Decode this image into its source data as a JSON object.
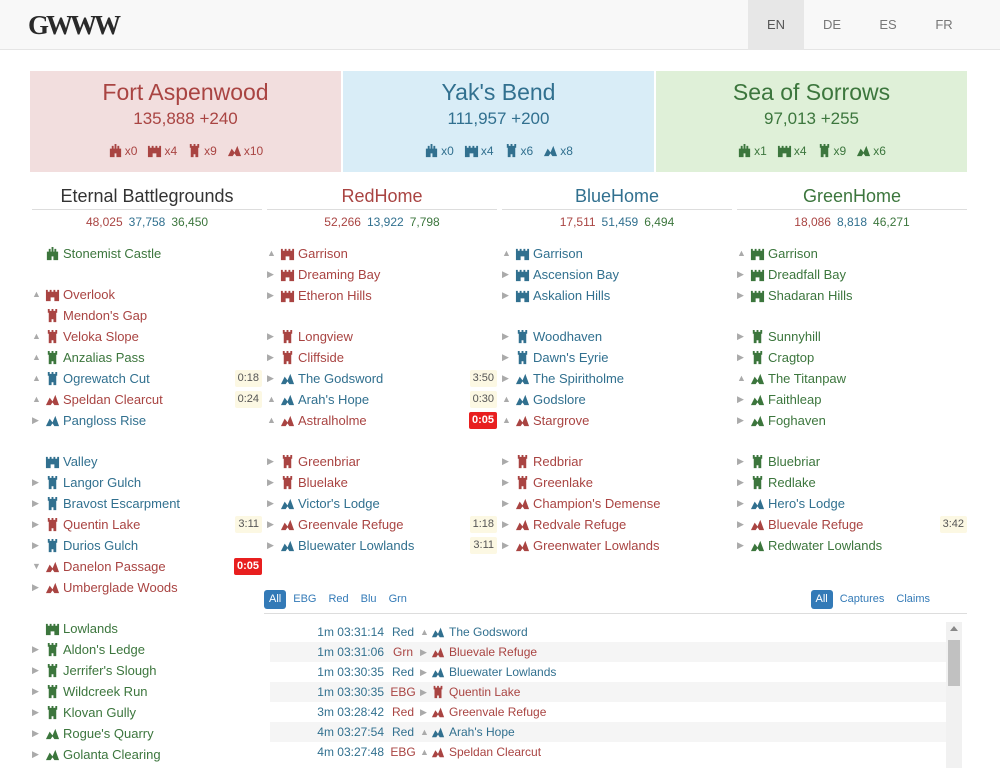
{
  "logo": {
    "text": "GWWW"
  },
  "languages": [
    {
      "code": "EN",
      "active": true
    },
    {
      "code": "DE",
      "active": false
    },
    {
      "code": "ES",
      "active": false
    },
    {
      "code": "FR",
      "active": false
    }
  ],
  "scores": [
    {
      "team": "red",
      "name": "Fort Aspenwood",
      "points": "135,888 +240",
      "holdings": [
        "x0",
        "x4",
        "x9",
        "x10"
      ]
    },
    {
      "team": "blue",
      "name": "Yak's Bend",
      "points": "111,957 +200",
      "holdings": [
        "x0",
        "x4",
        "x6",
        "x8"
      ]
    },
    {
      "team": "green",
      "name": "Sea of Sorrows",
      "points": "97,013 +255",
      "holdings": [
        "x1",
        "x4",
        "x9",
        "x6"
      ]
    }
  ],
  "colors": {
    "red": "#a94442",
    "blue": "#31708f",
    "green": "#3c763d",
    "timer_hot": "#e81f1f",
    "timer_bg": "#fcf8e3"
  },
  "maps": [
    {
      "name": "Eternal Battlegrounds",
      "head": "neu",
      "scores": [
        "48,025",
        "37,758",
        "36,450"
      ],
      "objectives": [
        {
          "name": "Stonemist Castle",
          "team": "green",
          "type": "castle",
          "arrow": "",
          "timer": ""
        },
        {
          "name": "Overlook",
          "team": "red",
          "type": "keep",
          "arrow": "up",
          "timer": ""
        },
        {
          "name": "Mendon's Gap",
          "team": "red",
          "type": "tower",
          "arrow": "",
          "timer": ""
        },
        {
          "name": "Veloka Slope",
          "team": "red",
          "type": "tower",
          "arrow": "up",
          "timer": ""
        },
        {
          "name": "Anzalias Pass",
          "team": "green",
          "type": "tower",
          "arrow": "up",
          "timer": ""
        },
        {
          "name": "Ogrewatch Cut",
          "team": "blue",
          "type": "tower",
          "arrow": "up",
          "timer": "0:18"
        },
        {
          "name": "Speldan Clearcut",
          "team": "red",
          "type": "camp",
          "arrow": "up",
          "timer": "0:24"
        },
        {
          "name": "Pangloss Rise",
          "team": "blue",
          "type": "camp",
          "arrow": "right",
          "timer": ""
        },
        {
          "name": "Valley",
          "team": "blue",
          "type": "keep",
          "arrow": "",
          "timer": ""
        },
        {
          "name": "Langor Gulch",
          "team": "blue",
          "type": "tower",
          "arrow": "right",
          "timer": ""
        },
        {
          "name": "Bravost Escarpment",
          "team": "blue",
          "type": "tower",
          "arrow": "right",
          "timer": ""
        },
        {
          "name": "Quentin Lake",
          "team": "red",
          "type": "tower",
          "arrow": "right",
          "timer": "3:11"
        },
        {
          "name": "Durios Gulch",
          "team": "blue",
          "type": "tower",
          "arrow": "right",
          "timer": ""
        },
        {
          "name": "Danelon Passage",
          "team": "red",
          "type": "camp",
          "arrow": "down",
          "timer": "0:05",
          "hot": true
        },
        {
          "name": "Umberglade Woods",
          "team": "red",
          "type": "camp",
          "arrow": "right",
          "timer": ""
        },
        {
          "name": "Lowlands",
          "team": "green",
          "type": "keep",
          "arrow": "",
          "timer": ""
        },
        {
          "name": "Aldon's Ledge",
          "team": "green",
          "type": "tower",
          "arrow": "right",
          "timer": ""
        },
        {
          "name": "Jerrifer's Slough",
          "team": "green",
          "type": "tower",
          "arrow": "right",
          "timer": ""
        },
        {
          "name": "Wildcreek Run",
          "team": "green",
          "type": "tower",
          "arrow": "right",
          "timer": ""
        },
        {
          "name": "Klovan Gully",
          "team": "green",
          "type": "tower",
          "arrow": "right",
          "timer": ""
        },
        {
          "name": "Rogue's Quarry",
          "team": "green",
          "type": "camp",
          "arrow": "right",
          "timer": ""
        },
        {
          "name": "Golanta Clearing",
          "team": "green",
          "type": "camp",
          "arrow": "right",
          "timer": ""
        }
      ]
    },
    {
      "name": "RedHome",
      "head": "red",
      "scores": [
        "52,266",
        "13,922",
        "7,798"
      ],
      "objectives": [
        {
          "name": "Garrison",
          "team": "red",
          "type": "keep",
          "arrow": "up",
          "timer": ""
        },
        {
          "name": "Dreaming Bay",
          "team": "red",
          "type": "keep",
          "arrow": "right",
          "timer": ""
        },
        {
          "name": "Etheron Hills",
          "team": "red",
          "type": "keep",
          "arrow": "right",
          "timer": ""
        },
        {
          "name": "Longview",
          "team": "red",
          "type": "tower",
          "arrow": "right",
          "timer": ""
        },
        {
          "name": "Cliffside",
          "team": "red",
          "type": "tower",
          "arrow": "right",
          "timer": ""
        },
        {
          "name": "The Godsword",
          "team": "blue",
          "type": "camp",
          "arrow": "right",
          "timer": "3:50"
        },
        {
          "name": "Arah's Hope",
          "team": "blue",
          "type": "camp",
          "arrow": "up",
          "timer": "0:30"
        },
        {
          "name": "Astralholme",
          "team": "red",
          "type": "camp",
          "arrow": "up",
          "timer": "0:05",
          "hot": true
        },
        {
          "name": "Greenbriar",
          "team": "red",
          "type": "tower",
          "arrow": "right",
          "timer": ""
        },
        {
          "name": "Bluelake",
          "team": "red",
          "type": "tower",
          "arrow": "right",
          "timer": ""
        },
        {
          "name": "Victor's Lodge",
          "team": "blue",
          "type": "camp",
          "arrow": "right",
          "timer": ""
        },
        {
          "name": "Greenvale Refuge",
          "team": "red",
          "type": "camp",
          "arrow": "right",
          "timer": "1:18"
        },
        {
          "name": "Bluewater Lowlands",
          "team": "blue",
          "type": "camp",
          "arrow": "right",
          "timer": "3:11"
        }
      ]
    },
    {
      "name": "BlueHome",
      "head": "blue",
      "scores": [
        "17,511",
        "51,459",
        "6,494"
      ],
      "objectives": [
        {
          "name": "Garrison",
          "team": "blue",
          "type": "keep",
          "arrow": "up",
          "timer": ""
        },
        {
          "name": "Ascension Bay",
          "team": "blue",
          "type": "keep",
          "arrow": "right",
          "timer": ""
        },
        {
          "name": "Askalion Hills",
          "team": "blue",
          "type": "keep",
          "arrow": "right",
          "timer": ""
        },
        {
          "name": "Woodhaven",
          "team": "blue",
          "type": "tower",
          "arrow": "right",
          "timer": ""
        },
        {
          "name": "Dawn's Eyrie",
          "team": "blue",
          "type": "tower",
          "arrow": "right",
          "timer": ""
        },
        {
          "name": "The Spiritholme",
          "team": "blue",
          "type": "camp",
          "arrow": "right",
          "timer": ""
        },
        {
          "name": "Godslore",
          "team": "blue",
          "type": "camp",
          "arrow": "up",
          "timer": ""
        },
        {
          "name": "Stargrove",
          "team": "red",
          "type": "camp",
          "arrow": "up",
          "timer": ""
        },
        {
          "name": "Redbriar",
          "team": "red",
          "type": "tower",
          "arrow": "right",
          "timer": ""
        },
        {
          "name": "Greenlake",
          "team": "red",
          "type": "tower",
          "arrow": "right",
          "timer": ""
        },
        {
          "name": "Champion's Demense",
          "team": "red",
          "type": "camp",
          "arrow": "right",
          "timer": ""
        },
        {
          "name": "Redvale Refuge",
          "team": "red",
          "type": "camp",
          "arrow": "right",
          "timer": ""
        },
        {
          "name": "Greenwater Lowlands",
          "team": "red",
          "type": "camp",
          "arrow": "right",
          "timer": ""
        }
      ]
    },
    {
      "name": "GreenHome",
      "head": "green",
      "scores": [
        "18,086",
        "8,818",
        "46,271"
      ],
      "objectives": [
        {
          "name": "Garrison",
          "team": "green",
          "type": "keep",
          "arrow": "up",
          "timer": ""
        },
        {
          "name": "Dreadfall Bay",
          "team": "green",
          "type": "keep",
          "arrow": "right",
          "timer": ""
        },
        {
          "name": "Shadaran Hills",
          "team": "green",
          "type": "keep",
          "arrow": "right",
          "timer": ""
        },
        {
          "name": "Sunnyhill",
          "team": "green",
          "type": "tower",
          "arrow": "right",
          "timer": ""
        },
        {
          "name": "Cragtop",
          "team": "green",
          "type": "tower",
          "arrow": "right",
          "timer": ""
        },
        {
          "name": "The Titanpaw",
          "team": "green",
          "type": "camp",
          "arrow": "up",
          "timer": ""
        },
        {
          "name": "Faithleap",
          "team": "green",
          "type": "camp",
          "arrow": "right",
          "timer": ""
        },
        {
          "name": "Foghaven",
          "team": "green",
          "type": "camp",
          "arrow": "right",
          "timer": ""
        },
        {
          "name": "Bluebriar",
          "team": "green",
          "type": "tower",
          "arrow": "right",
          "timer": ""
        },
        {
          "name": "Redlake",
          "team": "green",
          "type": "tower",
          "arrow": "right",
          "timer": ""
        },
        {
          "name": "Hero's Lodge",
          "team": "blue",
          "type": "camp",
          "arrow": "right",
          "timer": ""
        },
        {
          "name": "Bluevale Refuge",
          "team": "red",
          "type": "camp",
          "arrow": "right",
          "timer": "3:42"
        },
        {
          "name": "Redwater Lowlands",
          "team": "green",
          "type": "camp",
          "arrow": "right",
          "timer": ""
        }
      ]
    }
  ],
  "log": {
    "map_filters": [
      "All",
      "EBG",
      "Red",
      "Blu",
      "Grn"
    ],
    "type_filters": [
      "All",
      "Captures",
      "Claims"
    ],
    "rows": [
      {
        "ago": "1m",
        "time": "03:31:14",
        "map": "Red",
        "map_team": "blue",
        "obj": "The Godsword",
        "team": "blue",
        "type": "camp",
        "arrow": "up"
      },
      {
        "ago": "1m",
        "time": "03:31:06",
        "map": "Grn",
        "map_team": "red",
        "obj": "Bluevale Refuge",
        "team": "red",
        "type": "camp",
        "arrow": "right"
      },
      {
        "ago": "1m",
        "time": "03:30:35",
        "map": "Red",
        "map_team": "blue",
        "obj": "Bluewater Lowlands",
        "team": "blue",
        "type": "camp",
        "arrow": "right"
      },
      {
        "ago": "1m",
        "time": "03:30:35",
        "map": "EBG",
        "map_team": "red",
        "obj": "Quentin Lake",
        "team": "red",
        "type": "tower",
        "arrow": "right"
      },
      {
        "ago": "3m",
        "time": "03:28:42",
        "map": "Red",
        "map_team": "red",
        "obj": "Greenvale Refuge",
        "team": "red",
        "type": "camp",
        "arrow": "right"
      },
      {
        "ago": "4m",
        "time": "03:27:54",
        "map": "Red",
        "map_team": "blue",
        "obj": "Arah's Hope",
        "team": "blue",
        "type": "camp",
        "arrow": "up"
      },
      {
        "ago": "4m",
        "time": "03:27:48",
        "map": "EBG",
        "map_team": "red",
        "obj": "Speldan Clearcut",
        "team": "red",
        "type": "camp",
        "arrow": "up"
      }
    ]
  }
}
